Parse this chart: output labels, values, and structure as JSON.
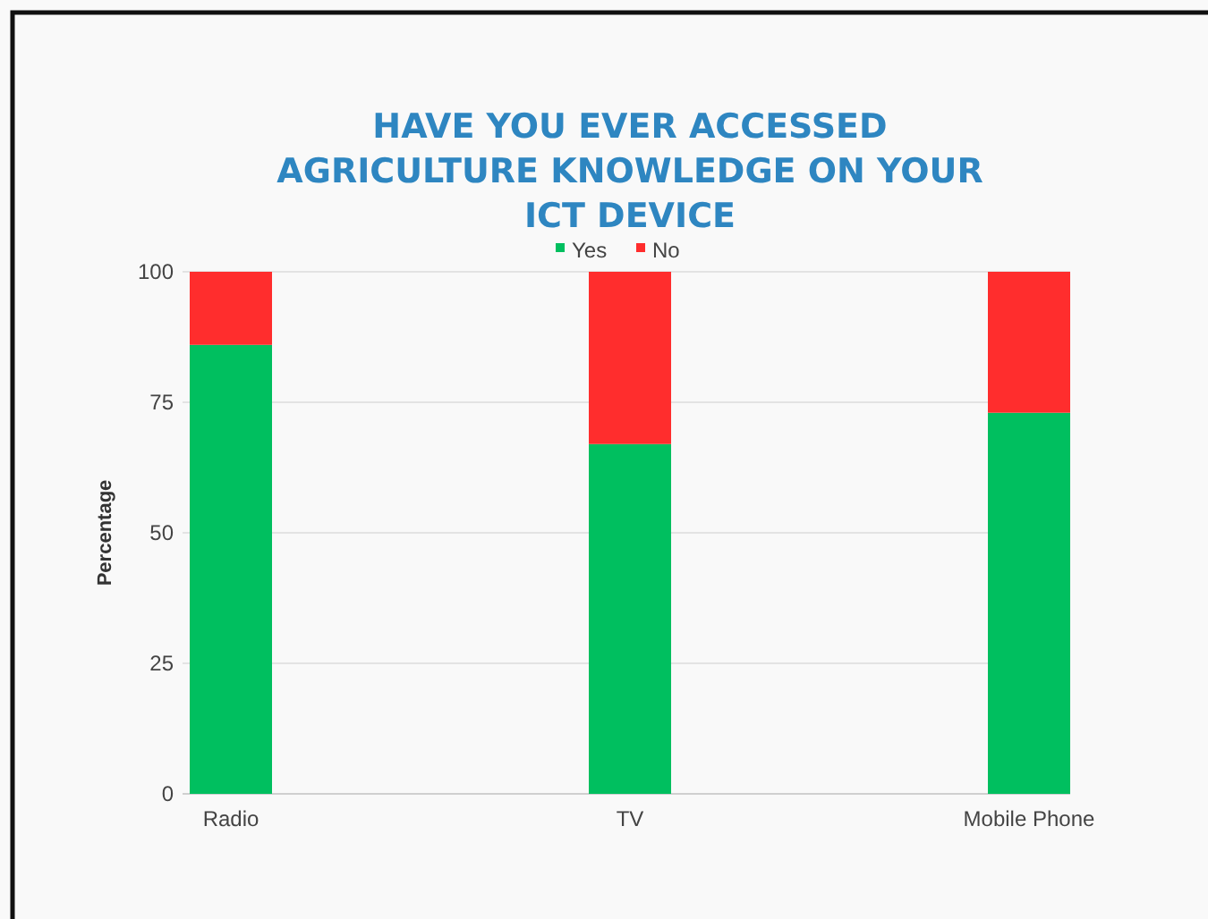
{
  "chart_data": {
    "type": "bar",
    "title": "HAVE YOU EVER ACCESSED AGRICULTURE KNOWLEDGE ON YOUR ICT DEVICE",
    "ylabel": "Percentage",
    "categories": [
      "Radio",
      "TV",
      "Mobile Phone"
    ],
    "stacked": true,
    "series": [
      {
        "name": "Yes",
        "color": "#00bf5f",
        "values": [
          86,
          67,
          73
        ]
      },
      {
        "name": "No",
        "color": "#ff2d2d",
        "values": [
          14,
          33,
          27
        ]
      }
    ],
    "ylim": [
      0,
      100
    ],
    "yticks": [
      0,
      25,
      50,
      75,
      100
    ],
    "grid": "y",
    "legend": "top"
  }
}
